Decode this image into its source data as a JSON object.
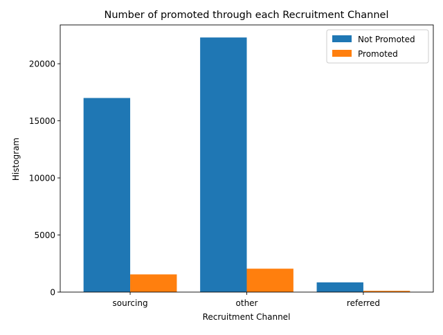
{
  "chart_data": {
    "type": "bar",
    "title": "Number of promoted through each Recruitment Channel",
    "xlabel": "Recruitment Channel",
    "ylabel": "Histogram",
    "categories": [
      "sourcing",
      "other",
      "referred"
    ],
    "series": [
      {
        "name": "Not Promoted",
        "color": "#1f77b4",
        "values": [
          17000,
          22300,
          850
        ]
      },
      {
        "name": "Promoted",
        "color": "#ff7f0e",
        "values": [
          1550,
          2050,
          110
        ]
      }
    ],
    "ylim": [
      0,
      23400
    ],
    "yticks": [
      0,
      5000,
      10000,
      15000,
      20000
    ],
    "ytick_labels": [
      "0",
      "5000",
      "10000",
      "15000",
      "20000"
    ],
    "legend_position": "top-right",
    "grid": false
  }
}
